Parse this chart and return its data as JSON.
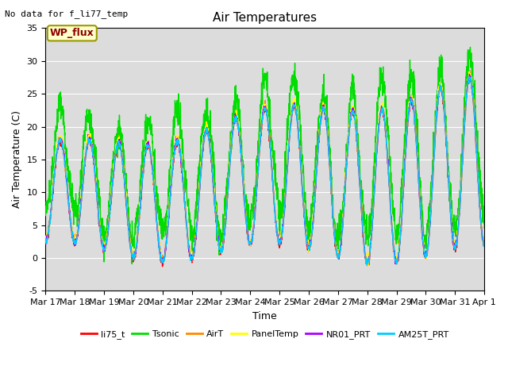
{
  "title": "Air Temperatures",
  "no_data_text": "No data for f_li77_temp",
  "wp_flux_label": "WP_flux",
  "xlabel": "Time",
  "ylabel": "Air Temperature (C)",
  "ylim": [
    -5,
    35
  ],
  "yticks": [
    -5,
    0,
    5,
    10,
    15,
    20,
    25,
    30,
    35
  ],
  "xtick_labels": [
    "Mar 17",
    "Mar 18",
    "Mar 19",
    "Mar 20",
    "Mar 21",
    "Mar 22",
    "Mar 23",
    "Mar 24",
    "Mar 25",
    "Mar 26",
    "Mar 27",
    "Mar 28",
    "Mar 29",
    "Mar 30",
    "Mar 31",
    "Apr 1"
  ],
  "bg_color": "#dcdcdc",
  "fig_bg": "#ffffff",
  "grid_color": "#ffffff",
  "series": [
    {
      "name": "li75_t",
      "color": "#ff0000"
    },
    {
      "name": "Tsonic",
      "color": "#00dd00"
    },
    {
      "name": "AirT",
      "color": "#ff8800"
    },
    {
      "name": "PanelTemp",
      "color": "#ffff00"
    },
    {
      "name": "NR01_PRT",
      "color": "#aa00ff"
    },
    {
      "name": "AM25T_PRT",
      "color": "#00ccff"
    }
  ],
  "n_days": 15,
  "pts_per_day": 144,
  "title_fontsize": 11,
  "label_fontsize": 9,
  "tick_fontsize": 8,
  "linewidth": 1.0
}
